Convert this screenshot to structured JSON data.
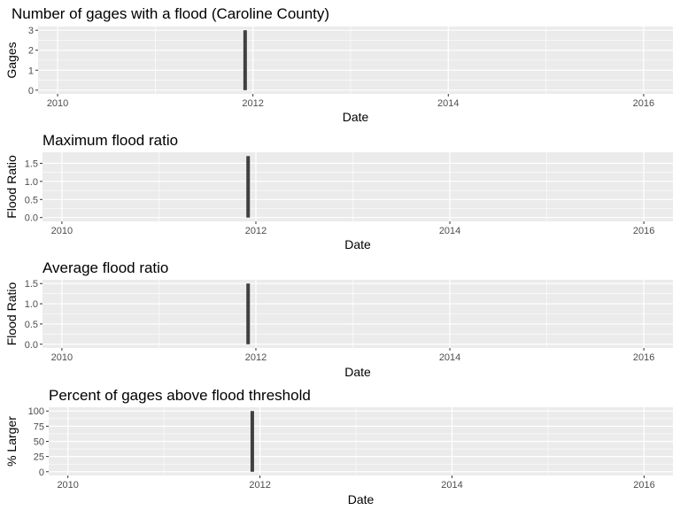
{
  "page": {
    "background": "#ffffff"
  },
  "style": {
    "panel_color": "#ebebeb",
    "grid_major_color": "#ffffff",
    "bar_color": "#404040",
    "tick_color": "#333333",
    "tick_label_color": "#4d4d4d"
  },
  "chart_data": [
    {
      "type": "bar",
      "title": "Number of gages with a flood (Caroline County)",
      "xlabel": "Date",
      "ylabel": "Gages",
      "x_ticks": [
        "2010",
        "2012",
        "2014",
        "2016"
      ],
      "y_ticks": [
        "0",
        "1",
        "2",
        "3"
      ],
      "xlim": [
        2009.8,
        2016.3
      ],
      "ylim": [
        0,
        3
      ],
      "grid": true,
      "data": [
        {
          "x": 2011.92,
          "y": 3
        }
      ]
    },
    {
      "type": "bar",
      "title": "Maximum flood ratio",
      "xlabel": "Date",
      "ylabel": "Flood Ratio",
      "x_ticks": [
        "2010",
        "2012",
        "2014",
        "2016"
      ],
      "y_ticks": [
        "0.0",
        "0.5",
        "1.0",
        "1.5"
      ],
      "xlim": [
        2009.8,
        2016.3
      ],
      "ylim": [
        0,
        1.7
      ],
      "grid": true,
      "data": [
        {
          "x": 2011.92,
          "y": 1.7
        }
      ]
    },
    {
      "type": "bar",
      "title": "Average flood ratio",
      "xlabel": "Date",
      "ylabel": "Flood Ratio",
      "x_ticks": [
        "2010",
        "2012",
        "2014",
        "2016"
      ],
      "y_ticks": [
        "0.0",
        "0.5",
        "1.0",
        "1.5"
      ],
      "xlim": [
        2009.8,
        2016.3
      ],
      "ylim": [
        0,
        1.5
      ],
      "grid": true,
      "data": [
        {
          "x": 2011.92,
          "y": 1.5
        }
      ]
    },
    {
      "type": "bar",
      "title": "Percent of gages above flood threshold",
      "xlabel": "Date",
      "ylabel": "% Larger",
      "x_ticks": [
        "2010",
        "2012",
        "2014",
        "2016"
      ],
      "y_ticks": [
        "0",
        "25",
        "50",
        "75",
        "100"
      ],
      "xlim": [
        2009.8,
        2016.3
      ],
      "ylim": [
        0,
        100
      ],
      "grid": true,
      "data": [
        {
          "x": 2011.92,
          "y": 100
        }
      ]
    }
  ]
}
